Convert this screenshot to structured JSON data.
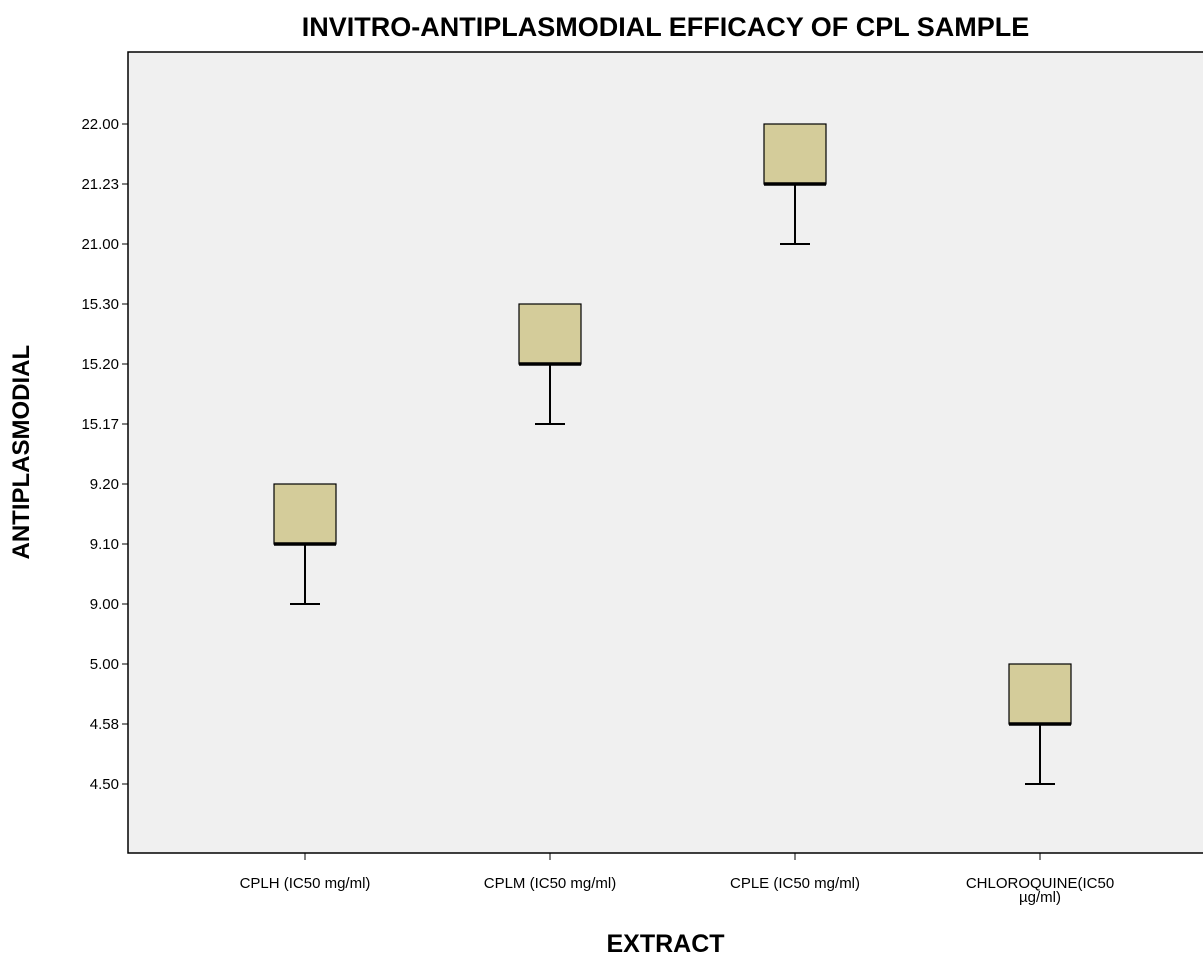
{
  "chart_data": {
    "type": "box",
    "title": "INVITRO-ANTIPLASMODIAL EFFICACY OF CPL SAMPLE",
    "xlabel": "EXTRACT",
    "ylabel": "ANTIPLASMODIAL",
    "y_ticks": [
      "22.00",
      "21.23",
      "21.00",
      "15.30",
      "15.20",
      "15.17",
      "9.20",
      "9.10",
      "9.00",
      "5.00",
      "4.58",
      "4.50"
    ],
    "categories": [
      [
        "CPLH (IC50 mg/ml)"
      ],
      [
        "CPLM (IC50 mg/ml)"
      ],
      [
        "CPLE (IC50 mg/ml)"
      ],
      [
        "CHLOROQUINE(IC50",
        "µg/ml)"
      ]
    ],
    "boxes": [
      {
        "min": "9.00",
        "median": "9.10",
        "max": "9.20"
      },
      {
        "min": "15.17",
        "median": "15.20",
        "max": "15.30"
      },
      {
        "min": "21.00",
        "median": "21.23",
        "max": "22.00"
      },
      {
        "min": "4.50",
        "median": "4.58",
        "max": "5.00"
      }
    ],
    "grid": false,
    "colors": {
      "box_fill": "#d4cc9a",
      "plot_background": "#f0f0f0",
      "stroke": "#000000"
    }
  }
}
